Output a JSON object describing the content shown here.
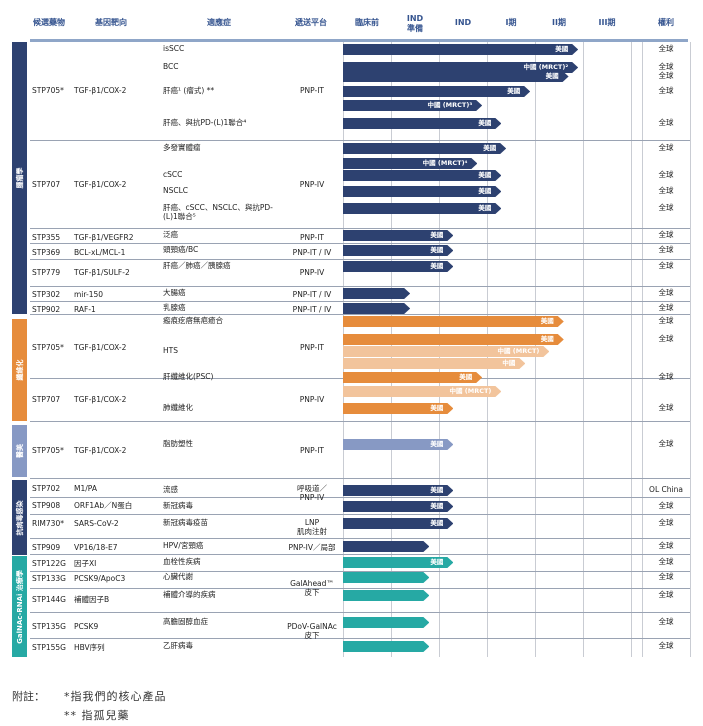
{
  "colors": {
    "tumor": "#2d4170",
    "fibrosis": "#e68c3c",
    "fibrosis_light": "#f2c49c",
    "fat": "#8799c4",
    "antiviral": "#2d4170",
    "galnac": "#26a9a4"
  },
  "headers": {
    "drug": "候選藥物",
    "target": "基因靶向",
    "indication": "適應症",
    "platform": "遞送平台",
    "preclinical": "臨床前",
    "ind_prep": "IND\n準備",
    "ind": "IND",
    "phase1": "I期",
    "phase2": "II期",
    "phase3": "III期",
    "rights": "權利"
  },
  "categories": [
    {
      "id": "tumor",
      "label": "腫瘤學"
    },
    {
      "id": "fibrosis",
      "label": "纖維化"
    },
    {
      "id": "fat",
      "label": "醫美"
    },
    {
      "id": "antiviral",
      "label": "抗病毒感染"
    },
    {
      "id": "galnac",
      "label": "GalNAc-RNAi 治療學"
    }
  ],
  "cells": [
    {
      "id": "c_stp705_1",
      "drug": "STP705*",
      "target": "TGF-β1/COX-2",
      "platform": "PNP-IT"
    },
    {
      "id": "c_stp707_1",
      "drug": "STP707",
      "target": "TGF-β1/COX-2",
      "platform": "PNP-IV"
    },
    {
      "id": "c_stp355",
      "drug": "STP355",
      "target": "TGF-β1/VEGFR2",
      "platform": "PNP-IT"
    },
    {
      "id": "c_stp369",
      "drug": "STP369",
      "target": "BCL-xL/MCL-1",
      "platform": "PNP-IT / IV"
    },
    {
      "id": "c_stp779",
      "drug": "STP779",
      "target": "TGF-β1/SULF-2",
      "platform": "PNP-IV"
    },
    {
      "id": "c_stp302",
      "drug": "STP302",
      "target": "mir-150",
      "platform": "PNP-IT / IV"
    },
    {
      "id": "c_stp902",
      "drug": "STP902",
      "target": "RAF-1",
      "platform": "PNP-IT / IV"
    },
    {
      "id": "c_stp705_2",
      "drug": "STP705*",
      "target": "TGF-β1/COX-2",
      "platform": "PNP-IT"
    },
    {
      "id": "c_stp707_2",
      "drug": "STP707",
      "target": "TGF-β1/COX-2",
      "platform": "PNP-IV"
    },
    {
      "id": "c_stp705_3",
      "drug": "STP705*",
      "target": "TGF-β1/COX-2",
      "platform": "PNP-IT"
    },
    {
      "id": "c_stp702",
      "drug": "STP702",
      "target": "M1/PA",
      "platform": "呼吸道／\nPNP-IV"
    },
    {
      "id": "c_stp908",
      "drug": "STP908",
      "target": "ORF1Ab／N蛋白",
      "platform": ""
    },
    {
      "id": "c_rim730",
      "drug": "RIM730*",
      "target": "SARS-CoV-2",
      "platform": "LNP\n肌肉注射"
    },
    {
      "id": "c_stp909",
      "drug": "STP909",
      "target": "VP16/18-E7",
      "platform": "PNP-IV／局部"
    },
    {
      "id": "c_stp122g",
      "drug": "STP122G",
      "target": "因子XI",
      "platform": ""
    },
    {
      "id": "c_stp133g",
      "drug": "STP133G",
      "target": "PCSK9/ApoC3",
      "platform": "GalAhead™\n皮下"
    },
    {
      "id": "c_stp144g",
      "drug": "STP144G",
      "target": "補體因子B",
      "platform": ""
    },
    {
      "id": "c_stp135g",
      "drug": "STP135G",
      "target": "PCSK9",
      "platform": "PDoV-GalNAc\n皮下"
    },
    {
      "id": "c_stp155g",
      "drug": "STP155G",
      "target": "HBV序列",
      "platform": ""
    }
  ],
  "rows": [
    {
      "id": "r1",
      "indication": "isSCC",
      "progress_stage": 4.9,
      "region": "美國",
      "color": "tumor",
      "rights": "全球"
    },
    {
      "id": "r2",
      "indication": "BCC",
      "progress_stage": 4.9,
      "region": "中國 (MRCT)²",
      "color": "tumor",
      "rights": "全球"
    },
    {
      "id": "r3",
      "indication": "",
      "progress_stage": 4.7,
      "region": "美國",
      "color": "tumor",
      "rights": "全球"
    },
    {
      "id": "r4",
      "indication": "肝癌¹ (瘤式) **",
      "progress_stage": 3.9,
      "region": "美國",
      "color": "tumor",
      "rights": "全球"
    },
    {
      "id": "r5",
      "indication": "",
      "progress_stage": 2.9,
      "region": "中國 (MRCT)³",
      "color": "tumor",
      "rights": ""
    },
    {
      "id": "r6",
      "indication": "肝癌、與抗PD-(L)1聯合⁴",
      "progress_stage": 3.3,
      "region": "美國",
      "color": "tumor",
      "rights": "全球"
    },
    {
      "id": "r7",
      "indication": "多發實體瘤",
      "progress_stage": 3.4,
      "region": "美國",
      "color": "tumor",
      "rights": "全球"
    },
    {
      "id": "r8",
      "indication": "",
      "progress_stage": 2.8,
      "region": "中國 (MRCT)⁴",
      "color": "tumor",
      "rights": ""
    },
    {
      "id": "r9",
      "indication": "cSCC",
      "progress_stage": 3.3,
      "region": "美國",
      "color": "tumor",
      "rights": "全球"
    },
    {
      "id": "r10",
      "indication": "NSCLC",
      "progress_stage": 3.3,
      "region": "美國",
      "color": "tumor",
      "rights": "全球"
    },
    {
      "id": "r11",
      "indication": "肝癌、cSCC、NSCLC、與抗PD-(L)1聯合⁵",
      "progress_stage": 3.3,
      "region": "美國",
      "color": "tumor",
      "rights": "全球"
    },
    {
      "id": "r12",
      "indication": "泛癌",
      "progress_stage": 2.3,
      "region": "美國",
      "color": "tumor",
      "rights": "全球"
    },
    {
      "id": "r13",
      "indication": "頭頸癌/BC",
      "progress_stage": 2.3,
      "region": "美國",
      "color": "tumor",
      "rights": "全球"
    },
    {
      "id": "r14",
      "indication": "肝癌／肺癌／胰腺癌",
      "progress_stage": 2.3,
      "region": "美國",
      "color": "tumor",
      "rights": "全球"
    },
    {
      "id": "r15",
      "indication": "大腸癌",
      "progress_stage": 1.4,
      "region": "",
      "color": "tumor",
      "rights": "全球"
    },
    {
      "id": "r16",
      "indication": "乳腺癌",
      "progress_stage": 1.4,
      "region": "",
      "color": "tumor",
      "rights": "全球"
    },
    {
      "id": "r17",
      "indication": "瘢痕疙瘩無疤癒合",
      "progress_stage": 4.6,
      "region": "美國",
      "color": "fibrosis",
      "rights": "全球"
    },
    {
      "id": "r18",
      "indication": "",
      "progress_stage": 4.6,
      "region": "美國",
      "color": "fibrosis",
      "rights": "全球"
    },
    {
      "id": "r19",
      "indication": "HTS",
      "progress_stage": 4.3,
      "region": "中國 (MRCT)",
      "color": "fibrosis_light",
      "rights": ""
    },
    {
      "id": "r20",
      "indication": "",
      "progress_stage": 3.8,
      "region": "中國",
      "color": "fibrosis_light",
      "rights": ""
    },
    {
      "id": "r21",
      "indication": "肝纖維化(PSC)",
      "progress_stage": 2.9,
      "region": "美國",
      "color": "fibrosis",
      "rights": "全球"
    },
    {
      "id": "r22",
      "indication": "",
      "progress_stage": 3.3,
      "region": "中國 (MRCT)",
      "color": "fibrosis_light",
      "rights": ""
    },
    {
      "id": "r23",
      "indication": "肺纖維化",
      "progress_stage": 2.3,
      "region": "美國",
      "color": "fibrosis",
      "rights": "全球"
    },
    {
      "id": "r24",
      "indication": "脂肪塑性",
      "progress_stage": 2.3,
      "region": "美國",
      "color": "fat",
      "rights": "全球"
    },
    {
      "id": "r25",
      "indication": "流感",
      "progress_stage": 2.3,
      "region": "美國",
      "color": "antiviral",
      "rights": "OL China"
    },
    {
      "id": "r26",
      "indication": "新冠病毒",
      "progress_stage": 2.3,
      "region": "美國",
      "color": "antiviral",
      "rights": "全球"
    },
    {
      "id": "r27",
      "indication": "新冠病毒疫苗",
      "progress_stage": 2.3,
      "region": "美國",
      "color": "antiviral",
      "rights": "全球"
    },
    {
      "id": "r28",
      "indication": "HPV/宮頸癌",
      "progress_stage": 1.8,
      "region": "",
      "color": "antiviral",
      "rights": "全球"
    },
    {
      "id": "r29",
      "indication": "血栓性疾病",
      "progress_stage": 2.3,
      "region": "美國",
      "color": "galnac",
      "rights": "全球"
    },
    {
      "id": "r30",
      "indication": "心臟代謝",
      "progress_stage": 1.8,
      "region": "",
      "color": "galnac",
      "rights": "全球"
    },
    {
      "id": "r31",
      "indication": "補體介導的疾病",
      "progress_stage": 1.8,
      "region": "",
      "color": "galnac",
      "rights": "全球"
    },
    {
      "id": "r32",
      "indication": "高膽固醇血症",
      "progress_stage": 1.8,
      "region": "",
      "color": "galnac",
      "rights": "全球"
    },
    {
      "id": "r33",
      "indication": "乙肝病毒",
      "progress_stage": 1.8,
      "region": "",
      "color": "galnac",
      "rights": "全球"
    }
  ],
  "notes": {
    "label": "附註：",
    "line1": "*指我們的核心產品",
    "line2": "** 指孤兒藥"
  }
}
